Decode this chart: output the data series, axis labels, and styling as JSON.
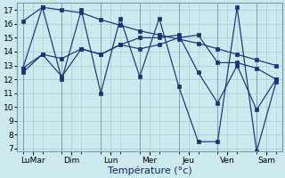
{
  "title": "",
  "xlabel": "Température (°c)",
  "ylabel": "",
  "background_color": "#cce9ee",
  "grid_color": "#aaccd4",
  "line_color": "#1a3080",
  "day_labels": [
    "LuMar",
    "Dim",
    "Lun",
    "Mer",
    "Jeu",
    "Ven",
    "Sam"
  ],
  "day_positions": [
    0.5,
    2.5,
    4.5,
    6.5,
    8.5,
    10.5,
    12.5
  ],
  "ylim": [
    6.8,
    17.5
  ],
  "yticks": [
    7,
    8,
    9,
    10,
    11,
    12,
    13,
    14,
    15,
    16,
    17
  ],
  "xlim": [
    -0.3,
    13.3
  ],
  "lines": [
    {
      "x": [
        0,
        1,
        2,
        3,
        4,
        5,
        6,
        7,
        8,
        9,
        10,
        11,
        12,
        13
      ],
      "y": [
        16.2,
        17.2,
        17.0,
        16.8,
        16.3,
        15.9,
        15.5,
        15.2,
        14.9,
        14.6,
        14.2,
        13.8,
        13.4,
        13.0
      ]
    },
    {
      "x": [
        0,
        1,
        2,
        3,
        4,
        5,
        6,
        7,
        8,
        9,
        10,
        11,
        12,
        13
      ],
      "y": [
        12.5,
        13.8,
        12.2,
        14.2,
        13.8,
        14.5,
        14.2,
        14.5,
        15.0,
        15.2,
        13.2,
        13.2,
        12.8,
        12.0
      ]
    },
    {
      "x": [
        0,
        1,
        2,
        3,
        4,
        5,
        6,
        7,
        8,
        9,
        10,
        11,
        12,
        13
      ],
      "y": [
        12.8,
        13.8,
        13.5,
        14.2,
        13.8,
        14.5,
        15.0,
        15.0,
        15.2,
        12.5,
        10.3,
        13.0,
        9.8,
        12.0
      ]
    },
    {
      "x": [
        0,
        1,
        2,
        3,
        4,
        5,
        6,
        7,
        8,
        9,
        10,
        11,
        12,
        13
      ],
      "y": [
        12.8,
        17.2,
        12.0,
        17.0,
        11.0,
        16.4,
        12.2,
        16.4,
        11.5,
        7.5,
        7.5,
        17.2,
        6.8,
        11.8
      ]
    }
  ],
  "xlabel_fontsize": 8,
  "tick_fontsize": 6.5,
  "marker_size": 2.2,
  "line_width": 0.85
}
